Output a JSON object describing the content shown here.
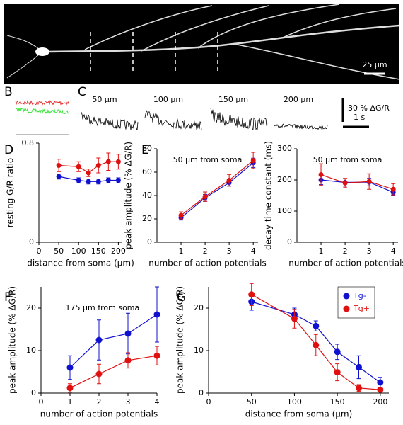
{
  "panel_labels": [
    "A",
    "B",
    "C",
    "D",
    "E",
    "F",
    "G"
  ],
  "image_a": {
    "scale_bar": "25 µm"
  },
  "traces_c": {
    "labels": [
      "50 µm",
      "100 µm",
      "150 µm",
      "200 µm"
    ],
    "scale_y": "30 % ΔG/R",
    "scale_x": "1 s"
  },
  "chart_data": [
    {
      "type": "line",
      "xlabel": "distance from soma (µm)",
      "ylabel": "resting G/R ratio",
      "x": [
        50,
        100,
        125,
        150,
        175,
        200
      ],
      "xlim": [
        0,
        210
      ],
      "xticks": [
        0,
        50,
        100,
        150,
        200
      ],
      "ylim": [
        0,
        0.8
      ],
      "yticks": [
        0,
        0.8
      ],
      "series": [
        {
          "color": "#e01010",
          "values": [
            0.62,
            0.61,
            0.56,
            0.62,
            0.65,
            0.65
          ],
          "errors": [
            0.05,
            0.04,
            0.03,
            0.06,
            0.07,
            0.06
          ]
        },
        {
          "color": "#1010d0",
          "values": [
            0.53,
            0.5,
            0.49,
            0.49,
            0.5,
            0.5
          ],
          "errors": [
            0.02,
            0.02,
            0.02,
            0.02,
            0.02,
            0.02
          ]
        }
      ]
    },
    {
      "type": "line",
      "annotation": "50 µm from soma",
      "xlabel": "number of action potentials",
      "ylabel": "peak amplitude (% ΔG/R)",
      "x": [
        1,
        2,
        3,
        4
      ],
      "xlim": [
        0,
        4.2
      ],
      "xticks": [
        1,
        2,
        3,
        4
      ],
      "ylim": [
        0,
        80
      ],
      "yticks": [
        0,
        20,
        40,
        60,
        80
      ],
      "series": [
        {
          "color": "#1010d0",
          "values": [
            21,
            38,
            51,
            68
          ],
          "errors": [
            2,
            3,
            3,
            4
          ]
        },
        {
          "color": "#e01010",
          "values": [
            23,
            39,
            53,
            70
          ],
          "errors": [
            3,
            4,
            5,
            7
          ]
        }
      ]
    },
    {
      "type": "line",
      "annotation": "50 µm from soma",
      "xlabel": "number of action potentials",
      "ylabel": "decay time constant (ms)",
      "x": [
        1,
        2,
        3,
        4
      ],
      "xlim": [
        0,
        4.2
      ],
      "xticks": [
        1,
        2,
        3,
        4
      ],
      "ylim": [
        0,
        300
      ],
      "yticks": [
        0,
        100,
        200,
        300
      ],
      "series": [
        {
          "color": "#1010d0",
          "values": [
            200,
            192,
            193,
            160
          ],
          "errors": [
            15,
            12,
            12,
            10
          ]
        },
        {
          "color": "#e01010",
          "values": [
            217,
            190,
            195,
            170
          ],
          "errors": [
            35,
            15,
            25,
            18
          ]
        }
      ]
    },
    {
      "type": "line",
      "annotation": "175 µm from soma",
      "xlabel": "number of action potentials",
      "ylabel": "peak amplitude (% ΔG/R)",
      "x": [
        1,
        2,
        3,
        4
      ],
      "xlim": [
        0,
        4
      ],
      "xticks": [
        0,
        1,
        2,
        3,
        4
      ],
      "ylim": [
        0,
        25
      ],
      "yticks": [
        0,
        10,
        20
      ],
      "series": [
        {
          "color": "#1010d0",
          "values": [
            6,
            12.5,
            14,
            18.5
          ],
          "errors": [
            2.8,
            4.7,
            4.8,
            6.5
          ]
        },
        {
          "color": "#e01010",
          "values": [
            1.2,
            4.5,
            7.7,
            8.8
          ],
          "errors": [
            1,
            2.3,
            1.8,
            2.2
          ]
        }
      ]
    },
    {
      "type": "line",
      "xlabel": "distance from soma (µm)",
      "ylabel": "peak amplitude (% ΔG/R)",
      "legend": "upper right",
      "x": [
        50,
        100,
        125,
        150,
        175,
        200
      ],
      "xlim": [
        0,
        210
      ],
      "xticks": [
        0,
        50,
        100,
        150,
        200
      ],
      "ylim": [
        0,
        25
      ],
      "yticks": [
        0,
        10,
        20
      ],
      "series": [
        {
          "name": "Tg-",
          "color": "#1010d0",
          "values": [
            21.5,
            18.5,
            15.8,
            9.7,
            6.1,
            2.5
          ],
          "errors": [
            2,
            1.5,
            1.2,
            1.8,
            2.7,
            1.2
          ]
        },
        {
          "name": "Tg+",
          "color": "#e01010",
          "values": [
            23.2,
            17.5,
            11.3,
            4.9,
            1.2,
            0.8
          ],
          "errors": [
            2.6,
            2.2,
            2.5,
            2,
            0.8,
            0.5
          ]
        }
      ]
    }
  ]
}
